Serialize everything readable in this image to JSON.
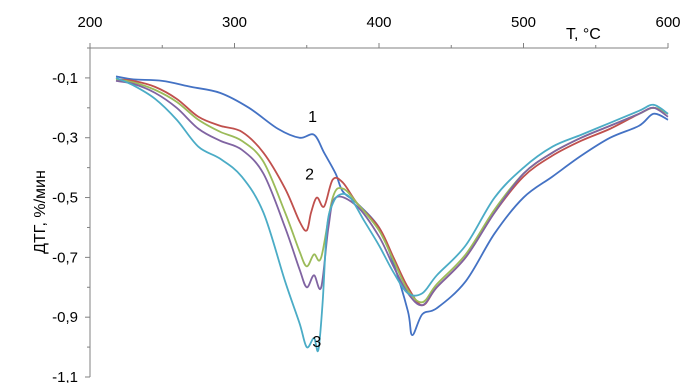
{
  "chart_data": {
    "type": "line",
    "xlabel": "T, °C",
    "ylabel": "ДТГ, %/мин",
    "xlim": [
      200,
      600
    ],
    "ylim": [
      -1.1,
      0.0
    ],
    "x_ticks": [
      200,
      300,
      400,
      500,
      600
    ],
    "x_tick_labels": [
      "200",
      "300",
      "400",
      "500",
      "600"
    ],
    "y_ticks": [
      -0.1,
      -0.3,
      -0.5,
      -0.7,
      -0.9,
      -1.1
    ],
    "y_tick_labels": [
      "-0,1",
      "-0,3",
      "-0,5",
      "-0,7",
      "-0,9",
      "-1,1"
    ],
    "x_axis_position": "top",
    "grid": false,
    "legend": "none",
    "annotations": [
      {
        "text": "1",
        "x": 354,
        "y": -0.248
      },
      {
        "text": "2",
        "x": 352,
        "y": -0.44
      },
      {
        "text": "3",
        "x": 357,
        "y": -1.0
      }
    ],
    "series": [
      {
        "color": "#4472C4",
        "x": [
          218,
          230,
          250,
          270,
          290,
          310,
          330,
          345,
          355,
          362,
          370,
          375,
          385,
          400,
          410,
          420,
          423,
          430,
          440,
          460,
          480,
          500,
          520,
          540,
          560,
          580,
          590,
          600
        ],
        "y": [
          -0.095,
          -0.105,
          -0.11,
          -0.13,
          -0.15,
          -0.2,
          -0.27,
          -0.3,
          -0.29,
          -0.35,
          -0.42,
          -0.48,
          -0.52,
          -0.6,
          -0.72,
          -0.88,
          -0.96,
          -0.89,
          -0.87,
          -0.78,
          -0.62,
          -0.5,
          -0.43,
          -0.36,
          -0.3,
          -0.26,
          -0.22,
          -0.24
        ]
      },
      {
        "color": "#C0504D",
        "x": [
          218,
          230,
          245,
          260,
          275,
          290,
          305,
          320,
          335,
          345,
          350,
          353,
          357,
          362,
          368,
          375,
          385,
          400,
          410,
          420,
          430,
          440,
          460,
          480,
          500,
          520,
          540,
          560,
          580,
          590,
          600
        ],
        "y": [
          -0.105,
          -0.11,
          -0.13,
          -0.17,
          -0.23,
          -0.26,
          -0.28,
          -0.35,
          -0.47,
          -0.58,
          -0.61,
          -0.55,
          -0.5,
          -0.53,
          -0.44,
          -0.45,
          -0.52,
          -0.6,
          -0.7,
          -0.8,
          -0.86,
          -0.8,
          -0.7,
          -0.55,
          -0.43,
          -0.36,
          -0.31,
          -0.27,
          -0.22,
          -0.2,
          -0.22
        ]
      },
      {
        "color": "#9BBB59",
        "x": [
          218,
          230,
          245,
          260,
          275,
          290,
          305,
          320,
          335,
          345,
          350,
          355,
          360,
          368,
          375,
          385,
          400,
          410,
          420,
          430,
          440,
          460,
          480,
          500,
          520,
          540,
          560,
          580,
          590,
          600
        ],
        "y": [
          -0.105,
          -0.115,
          -0.14,
          -0.18,
          -0.24,
          -0.28,
          -0.31,
          -0.38,
          -0.55,
          -0.68,
          -0.73,
          -0.69,
          -0.7,
          -0.5,
          -0.47,
          -0.52,
          -0.61,
          -0.71,
          -0.81,
          -0.85,
          -0.79,
          -0.69,
          -0.54,
          -0.42,
          -0.35,
          -0.3,
          -0.26,
          -0.22,
          -0.2,
          -0.22
        ]
      },
      {
        "color": "#8064A2",
        "x": [
          218,
          230,
          245,
          260,
          275,
          290,
          305,
          320,
          335,
          345,
          350,
          355,
          360,
          365,
          370,
          385,
          400,
          410,
          420,
          430,
          440,
          460,
          480,
          500,
          520,
          540,
          560,
          580,
          590,
          600
        ],
        "y": [
          -0.11,
          -0.12,
          -0.15,
          -0.2,
          -0.27,
          -0.31,
          -0.34,
          -0.42,
          -0.6,
          -0.74,
          -0.8,
          -0.76,
          -0.8,
          -0.6,
          -0.5,
          -0.53,
          -0.63,
          -0.73,
          -0.82,
          -0.86,
          -0.8,
          -0.7,
          -0.55,
          -0.42,
          -0.35,
          -0.3,
          -0.26,
          -0.22,
          -0.2,
          -0.23
        ]
      },
      {
        "color": "#4BACC6",
        "x": [
          218,
          230,
          245,
          260,
          275,
          290,
          305,
          320,
          335,
          345,
          350,
          355,
          358,
          361,
          364,
          368,
          373,
          380,
          390,
          400,
          410,
          420,
          430,
          440,
          460,
          480,
          500,
          520,
          540,
          560,
          580,
          590,
          600
        ],
        "y": [
          -0.1,
          -0.125,
          -0.17,
          -0.24,
          -0.33,
          -0.37,
          -0.43,
          -0.55,
          -0.78,
          -0.92,
          -1.0,
          -0.97,
          -1.01,
          -0.85,
          -0.6,
          -0.52,
          -0.49,
          -0.5,
          -0.58,
          -0.66,
          -0.75,
          -0.82,
          -0.82,
          -0.76,
          -0.66,
          -0.5,
          -0.4,
          -0.33,
          -0.29,
          -0.25,
          -0.21,
          -0.19,
          -0.22
        ]
      }
    ]
  }
}
